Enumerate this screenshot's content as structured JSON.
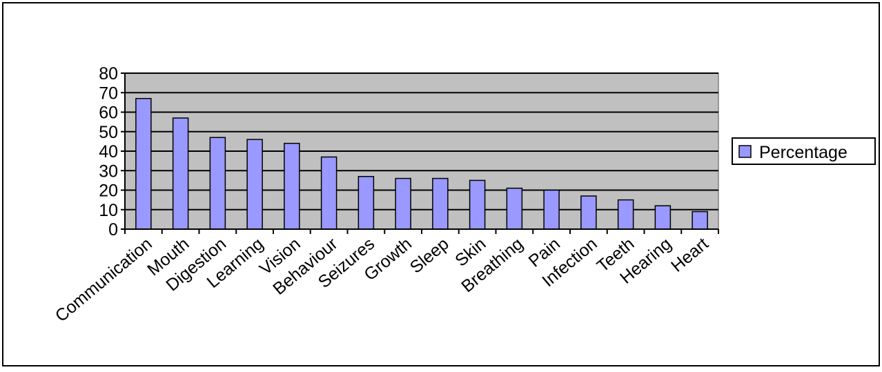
{
  "chart_data": {
    "type": "bar",
    "categories": [
      "Communication",
      "Mouth",
      "Digestion",
      "Learning",
      "Vision",
      "Behaviour",
      "Seizures",
      "Growth",
      "Sleep",
      "Skin",
      "Breathing",
      "Pain",
      "Infection",
      "Teeth",
      "Hearing",
      "Heart"
    ],
    "series": [
      {
        "name": "Percentage",
        "values": [
          67,
          57,
          47,
          46,
          44,
          37,
          27,
          26,
          26,
          25,
          21,
          20,
          17,
          15,
          12,
          9
        ],
        "color": "#9999ff"
      }
    ],
    "yticks": [
      "0",
      "10",
      "20",
      "30",
      "40",
      "50",
      "60",
      "70",
      "80"
    ],
    "ylim": [
      0,
      80
    ],
    "grid": true,
    "plot_background": "#c0c0c0",
    "legend_position": "right",
    "title": "",
    "xlabel": "",
    "ylabel": ""
  }
}
